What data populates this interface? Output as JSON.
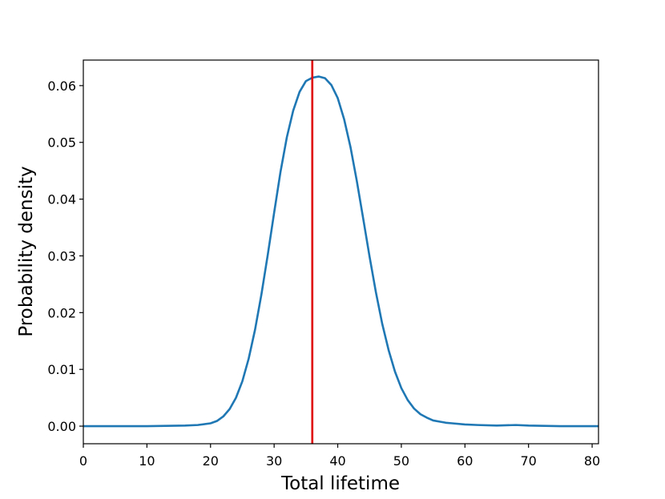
{
  "chart_data": {
    "type": "line",
    "title": "",
    "xlabel": "Total lifetime",
    "ylabel": "Probability density",
    "xlim": [
      0,
      81
    ],
    "ylim": [
      -0.0031,
      0.0645
    ],
    "grid": false,
    "legend": "none",
    "x_ticks": [
      0,
      10,
      20,
      30,
      40,
      50,
      60,
      70,
      80
    ],
    "x_tick_labels": [
      "0",
      "10",
      "20",
      "30",
      "40",
      "50",
      "60",
      "70",
      "80"
    ],
    "y_ticks": [
      0.0,
      0.01,
      0.02,
      0.03,
      0.04,
      0.05,
      0.06
    ],
    "y_tick_labels": [
      "0.00",
      "0.01",
      "0.02",
      "0.03",
      "0.04",
      "0.05",
      "0.06"
    ],
    "series": [
      {
        "color": "#1f77b4",
        "x": [
          0,
          10,
          16,
          18,
          20,
          21,
          22,
          23,
          24,
          25,
          26,
          27,
          28,
          29,
          30,
          31,
          32,
          33,
          34,
          35,
          36,
          37,
          38,
          39,
          40,
          41,
          42,
          43,
          44,
          45,
          46,
          47,
          48,
          49,
          50,
          51,
          52,
          53,
          54,
          55,
          56,
          57,
          58,
          60,
          62,
          65,
          68,
          70,
          75,
          81
        ],
        "y": [
          0.0,
          0.0,
          0.0001,
          0.0002,
          0.0005,
          0.0009,
          0.0017,
          0.003,
          0.005,
          0.0079,
          0.0119,
          0.017,
          0.0232,
          0.0302,
          0.0376,
          0.0448,
          0.0509,
          0.0556,
          0.0589,
          0.0608,
          0.0614,
          0.0616,
          0.0613,
          0.0601,
          0.0578,
          0.0541,
          0.0492,
          0.0432,
          0.0366,
          0.0299,
          0.0236,
          0.018,
          0.0134,
          0.0096,
          0.0067,
          0.0046,
          0.0031,
          0.0021,
          0.0015,
          0.001,
          0.0008,
          0.0006,
          0.0005,
          0.0003,
          0.0002,
          0.0001,
          0.0002,
          0.0001,
          0.0,
          0.0
        ]
      }
    ],
    "reference_line": {
      "x": 36,
      "color": "#e00000"
    }
  }
}
